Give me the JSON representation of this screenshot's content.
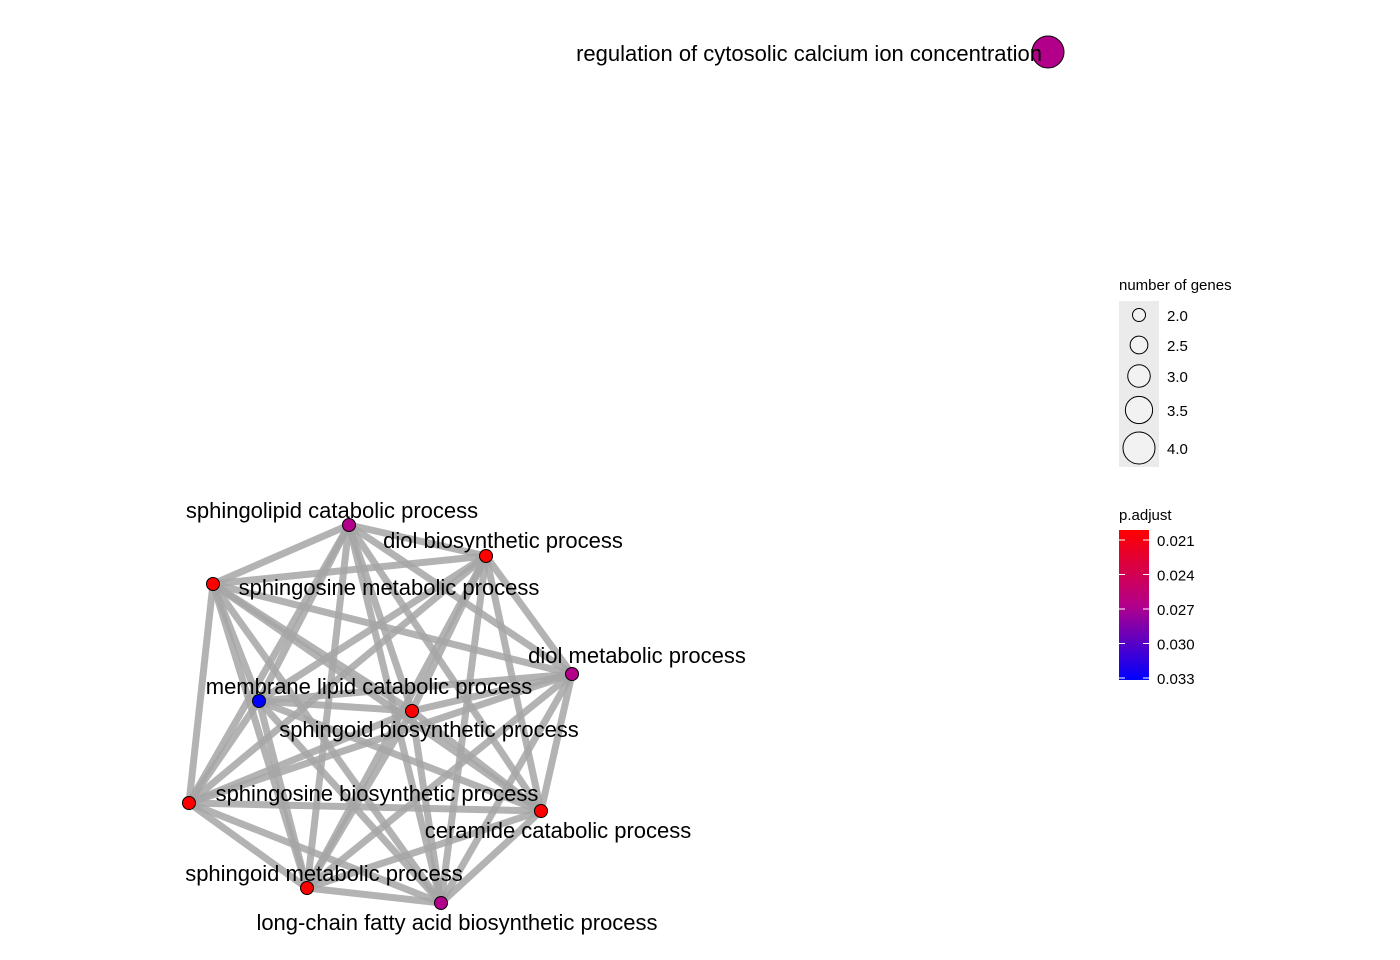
{
  "chart_data": {
    "type": "network",
    "nodes": [
      {
        "id": "rcci",
        "label": "regulation of cytosolic calcium ion concentration",
        "genes": 4.0,
        "p_adjust": 0.027
      },
      {
        "id": "slcp",
        "label": "sphingolipid catabolic process",
        "genes": 2.0,
        "p_adjust": 0.027
      },
      {
        "id": "dbp",
        "label": "diol biosynthetic process",
        "genes": 2.0,
        "p_adjust": 0.021
      },
      {
        "id": "smp",
        "label": "sphingosine metabolic process",
        "genes": 2.0,
        "p_adjust": 0.021
      },
      {
        "id": "dmp",
        "label": "diol metabolic process",
        "genes": 2.0,
        "p_adjust": 0.027
      },
      {
        "id": "mlcp",
        "label": "membrane lipid catabolic process",
        "genes": 2.0,
        "p_adjust": 0.033
      },
      {
        "id": "sbp",
        "label": "sphingoid biosynthetic process",
        "genes": 2.0,
        "p_adjust": 0.021
      },
      {
        "id": "sbsp",
        "label": "sphingosine biosynthetic process",
        "genes": 2.0,
        "p_adjust": 0.021
      },
      {
        "id": "ccp",
        "label": "ceramide catabolic process",
        "genes": 2.0,
        "p_adjust": 0.021
      },
      {
        "id": "sgmp",
        "label": "sphingoid metabolic process",
        "genes": 2.0,
        "p_adjust": 0.021
      },
      {
        "id": "lcfa",
        "label": "long-chain fatty acid biosynthetic process",
        "genes": 2.0,
        "p_adjust": 0.027
      }
    ],
    "edges_fully_connected": [
      "slcp",
      "dbp",
      "smp",
      "dmp",
      "mlcp",
      "sbp",
      "sbsp",
      "ccp",
      "sgmp",
      "lcfa"
    ],
    "size_legend": {
      "title": "number of genes",
      "values": [
        2.0,
        2.5,
        3.0,
        3.5,
        4.0
      ],
      "labels": [
        "2.0",
        "2.5",
        "3.0",
        "3.5",
        "4.0"
      ]
    },
    "color_legend": {
      "title": "p.adjust",
      "labels": [
        "0.021",
        "0.024",
        "0.027",
        "0.030",
        "0.033"
      ],
      "values": [
        0.021,
        0.024,
        0.027,
        0.03,
        0.033
      ],
      "low_color": "#ff0000",
      "high_color": "#0000ff"
    }
  },
  "colors": {
    "edge": "#a6a6a6",
    "node_stroke": "#000000",
    "legend_bg": "#ebebeb"
  }
}
